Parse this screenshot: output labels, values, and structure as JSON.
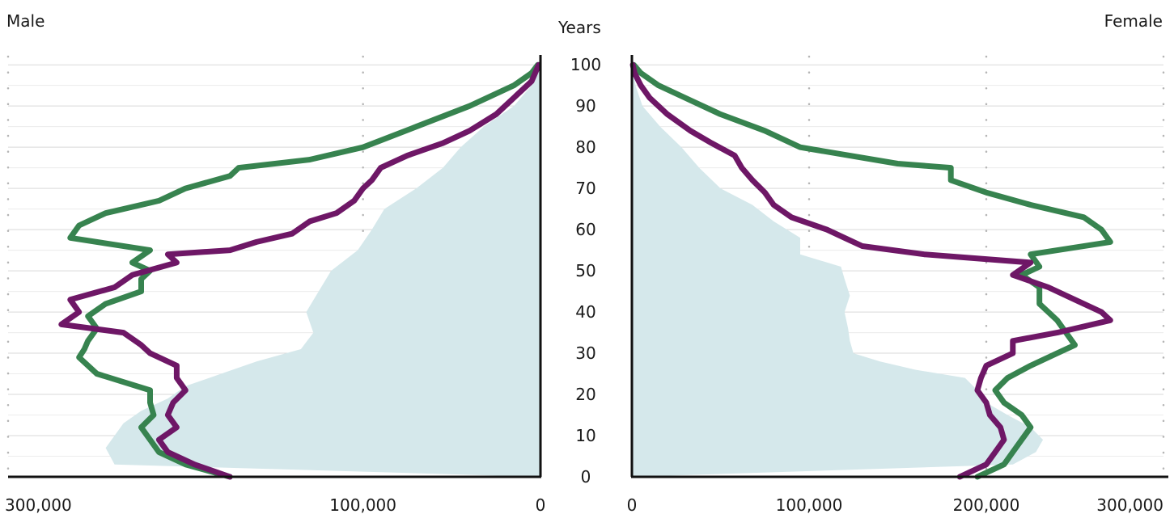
{
  "chart_data": {
    "type": "line",
    "title": "",
    "yaxis_label": "Years",
    "y_ticks": [
      0,
      10,
      20,
      30,
      40,
      50,
      60,
      70,
      80,
      90,
      100
    ],
    "ylim": [
      0,
      102
    ],
    "grid": true,
    "panels": [
      {
        "name": "Male",
        "direction": "left",
        "xlim": [
          0,
          300000
        ],
        "x_ticks": [
          {
            "value": 300000,
            "label": "300,000"
          },
          {
            "value": 100000,
            "label": "100,000"
          },
          {
            "value": 0,
            "label": "0"
          }
        ]
      },
      {
        "name": "Female",
        "direction": "right",
        "xlim": [
          0,
          300000
        ],
        "x_ticks": [
          {
            "value": 0,
            "label": "0"
          },
          {
            "value": 100000,
            "label": "100,000"
          },
          {
            "value": 200000,
            "label": "200,000"
          },
          {
            "value": 300000,
            "label": "300,000"
          }
        ]
      }
    ],
    "series": [
      {
        "panel": "Male",
        "style": "area",
        "color": "#d5e8eb",
        "points": [
          [
            0,
            0
          ],
          [
            3,
            240000
          ],
          [
            7,
            245000
          ],
          [
            10,
            240000
          ],
          [
            13,
            235000
          ],
          [
            16,
            225000
          ],
          [
            19,
            210000
          ],
          [
            22,
            200000
          ],
          [
            25,
            180000
          ],
          [
            28,
            160000
          ],
          [
            31,
            135000
          ],
          [
            35,
            128000
          ],
          [
            40,
            132000
          ],
          [
            45,
            125000
          ],
          [
            50,
            118000
          ],
          [
            55,
            103000
          ],
          [
            60,
            95000
          ],
          [
            65,
            88000
          ],
          [
            70,
            70000
          ],
          [
            75,
            55000
          ],
          [
            80,
            45000
          ],
          [
            85,
            32000
          ],
          [
            90,
            15000
          ],
          [
            95,
            5000
          ],
          [
            100,
            1000
          ]
        ]
      },
      {
        "panel": "Male",
        "style": "line",
        "color": "#37834f",
        "points": [
          [
            0,
            175000
          ],
          [
            3,
            200000
          ],
          [
            6,
            215000
          ],
          [
            9,
            220000
          ],
          [
            12,
            225000
          ],
          [
            15,
            218000
          ],
          [
            18,
            220000
          ],
          [
            21,
            220000
          ],
          [
            25,
            250000
          ],
          [
            29,
            260000
          ],
          [
            31,
            257000
          ],
          [
            33,
            255000
          ],
          [
            36,
            250000
          ],
          [
            39,
            255000
          ],
          [
            42,
            245000
          ],
          [
            45,
            225000
          ],
          [
            48,
            225000
          ],
          [
            50,
            220000
          ],
          [
            52,
            230000
          ],
          [
            55,
            220000
          ],
          [
            58,
            265000
          ],
          [
            61,
            260000
          ],
          [
            64,
            245000
          ],
          [
            67,
            215000
          ],
          [
            70,
            200000
          ],
          [
            73,
            175000
          ],
          [
            75,
            170000
          ],
          [
            77,
            130000
          ],
          [
            80,
            100000
          ],
          [
            85,
            70000
          ],
          [
            90,
            40000
          ],
          [
            95,
            15000
          ],
          [
            98,
            5000
          ],
          [
            100,
            1500
          ]
        ]
      },
      {
        "panel": "Male",
        "style": "line",
        "color": "#6e1766",
        "points": [
          [
            0,
            175000
          ],
          [
            3,
            195000
          ],
          [
            6,
            210000
          ],
          [
            9,
            215000
          ],
          [
            12,
            205000
          ],
          [
            15,
            210000
          ],
          [
            18,
            207000
          ],
          [
            21,
            200000
          ],
          [
            24,
            205000
          ],
          [
            27,
            205000
          ],
          [
            30,
            220000
          ],
          [
            32,
            225000
          ],
          [
            35,
            235000
          ],
          [
            37,
            270000
          ],
          [
            40,
            260000
          ],
          [
            43,
            265000
          ],
          [
            46,
            240000
          ],
          [
            49,
            230000
          ],
          [
            52,
            205000
          ],
          [
            54,
            210000
          ],
          [
            55,
            175000
          ],
          [
            57,
            160000
          ],
          [
            59,
            140000
          ],
          [
            62,
            130000
          ],
          [
            64,
            115000
          ],
          [
            67,
            105000
          ],
          [
            70,
            100000
          ],
          [
            72,
            95000
          ],
          [
            75,
            90000
          ],
          [
            78,
            75000
          ],
          [
            81,
            55000
          ],
          [
            84,
            40000
          ],
          [
            88,
            25000
          ],
          [
            92,
            15000
          ],
          [
            96,
            5000
          ],
          [
            100,
            1000
          ]
        ]
      },
      {
        "panel": "Female",
        "style": "area",
        "color": "#d5e8eb",
        "points": [
          [
            0,
            0
          ],
          [
            3,
            215000
          ],
          [
            6,
            228000
          ],
          [
            9,
            232000
          ],
          [
            12,
            225000
          ],
          [
            15,
            212000
          ],
          [
            18,
            200000
          ],
          [
            21,
            195000
          ],
          [
            24,
            188000
          ],
          [
            26,
            160000
          ],
          [
            28,
            140000
          ],
          [
            30,
            125000
          ],
          [
            33,
            123000
          ],
          [
            36,
            122000
          ],
          [
            40,
            120000
          ],
          [
            44,
            123000
          ],
          [
            48,
            120000
          ],
          [
            51,
            118000
          ],
          [
            54,
            95000
          ],
          [
            58,
            95000
          ],
          [
            62,
            80000
          ],
          [
            66,
            68000
          ],
          [
            70,
            50000
          ],
          [
            75,
            38000
          ],
          [
            80,
            28000
          ],
          [
            85,
            16000
          ],
          [
            90,
            6000
          ],
          [
            95,
            2000
          ],
          [
            100,
            500
          ]
        ]
      },
      {
        "panel": "Female",
        "style": "line",
        "color": "#37834f",
        "points": [
          [
            0,
            195000
          ],
          [
            3,
            210000
          ],
          [
            6,
            215000
          ],
          [
            9,
            220000
          ],
          [
            12,
            225000
          ],
          [
            15,
            220000
          ],
          [
            18,
            210000
          ],
          [
            21,
            205000
          ],
          [
            24,
            212000
          ],
          [
            27,
            225000
          ],
          [
            30,
            240000
          ],
          [
            32,
            250000
          ],
          [
            35,
            245000
          ],
          [
            38,
            240000
          ],
          [
            42,
            230000
          ],
          [
            46,
            230000
          ],
          [
            49,
            220000
          ],
          [
            51,
            230000
          ],
          [
            54,
            225000
          ],
          [
            57,
            270000
          ],
          [
            60,
            265000
          ],
          [
            63,
            255000
          ],
          [
            66,
            225000
          ],
          [
            69,
            200000
          ],
          [
            72,
            180000
          ],
          [
            75,
            180000
          ],
          [
            76,
            150000
          ],
          [
            80,
            95000
          ],
          [
            84,
            75000
          ],
          [
            88,
            50000
          ],
          [
            92,
            30000
          ],
          [
            95,
            15000
          ],
          [
            98,
            5000
          ],
          [
            100,
            1000
          ]
        ]
      },
      {
        "panel": "Female",
        "style": "line",
        "color": "#6e1766",
        "points": [
          [
            0,
            185000
          ],
          [
            3,
            200000
          ],
          [
            6,
            205000
          ],
          [
            9,
            210000
          ],
          [
            12,
            208000
          ],
          [
            15,
            202000
          ],
          [
            18,
            200000
          ],
          [
            21,
            195000
          ],
          [
            24,
            197000
          ],
          [
            27,
            200000
          ],
          [
            30,
            215000
          ],
          [
            33,
            215000
          ],
          [
            35,
            240000
          ],
          [
            38,
            270000
          ],
          [
            40,
            265000
          ],
          [
            43,
            250000
          ],
          [
            46,
            235000
          ],
          [
            49,
            215000
          ],
          [
            52,
            225000
          ],
          [
            54,
            165000
          ],
          [
            56,
            130000
          ],
          [
            58,
            120000
          ],
          [
            60,
            110000
          ],
          [
            63,
            90000
          ],
          [
            66,
            80000
          ],
          [
            69,
            75000
          ],
          [
            72,
            68000
          ],
          [
            75,
            62000
          ],
          [
            78,
            58000
          ],
          [
            81,
            45000
          ],
          [
            84,
            33000
          ],
          [
            88,
            20000
          ],
          [
            92,
            10000
          ],
          [
            95,
            5000
          ],
          [
            98,
            1500
          ],
          [
            100,
            500
          ]
        ]
      }
    ]
  }
}
